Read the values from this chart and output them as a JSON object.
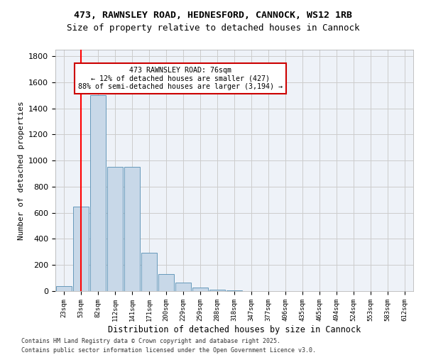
{
  "title_line1": "473, RAWNSLEY ROAD, HEDNESFORD, CANNOCK, WS12 1RB",
  "title_line2": "Size of property relative to detached houses in Cannock",
  "xlabel": "Distribution of detached houses by size in Cannock",
  "ylabel": "Number of detached properties",
  "categories": [
    "23sqm",
    "53sqm",
    "82sqm",
    "112sqm",
    "141sqm",
    "171sqm",
    "200sqm",
    "229sqm",
    "259sqm",
    "288sqm",
    "318sqm",
    "347sqm",
    "377sqm",
    "406sqm",
    "435sqm",
    "465sqm",
    "494sqm",
    "524sqm",
    "553sqm",
    "583sqm",
    "612sqm"
  ],
  "values": [
    40,
    650,
    1500,
    950,
    950,
    295,
    130,
    65,
    25,
    10,
    5,
    2,
    1,
    0,
    0,
    0,
    0,
    0,
    0,
    0,
    0
  ],
  "bar_color": "#c8d8e8",
  "bar_edge_color": "#6699bb",
  "grid_color": "#cccccc",
  "bg_color": "#eef2f8",
  "red_line_x": 1,
  "annotation_title": "473 RAWNSLEY ROAD: 76sqm",
  "annotation_line2": "← 12% of detached houses are smaller (427)",
  "annotation_line3": "88% of semi-detached houses are larger (3,194) →",
  "annotation_box_color": "#ffffff",
  "annotation_border_color": "#cc0000",
  "footer_line1": "Contains HM Land Registry data © Crown copyright and database right 2025.",
  "footer_line2": "Contains public sector information licensed under the Open Government Licence v3.0.",
  "ylim": [
    0,
    1850
  ],
  "yticks": [
    0,
    200,
    400,
    600,
    800,
    1000,
    1200,
    1400,
    1600,
    1800
  ]
}
